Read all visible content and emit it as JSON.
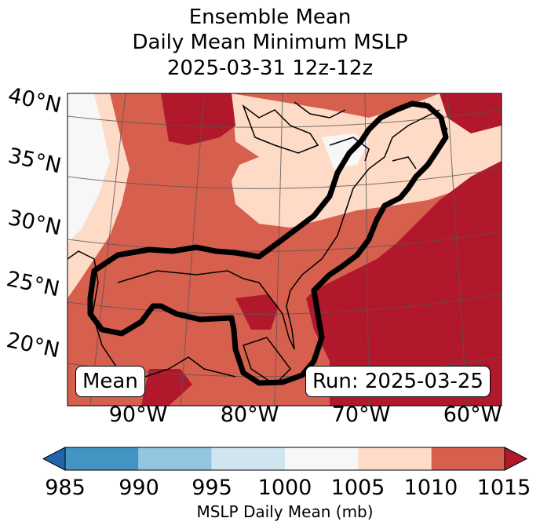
{
  "title_lines": [
    "Ensemble Mean",
    "Daily Mean Minimum MSLP",
    "2025-03-31 12z-12z"
  ],
  "map": {
    "lat_ticks": [
      "40°N",
      "35°N",
      "30°N",
      "25°N",
      "20°N"
    ],
    "lon_ticks": [
      "90°W",
      "80°W",
      "70°W",
      "60°W"
    ],
    "annotation_left": "Mean",
    "annotation_right": "Run: 2025-03-25"
  },
  "colorbar": {
    "ticks": [
      "985",
      "990",
      "995",
      "1000",
      "1005",
      "1010",
      "1015"
    ],
    "colors": [
      "#2166ac",
      "#4393c3",
      "#92c5de",
      "#d1e5f0",
      "#f7f7f7",
      "#fddbc7",
      "#d6604d",
      "#b2182b"
    ],
    "label": "MSLP Daily Mean (mb)"
  }
}
